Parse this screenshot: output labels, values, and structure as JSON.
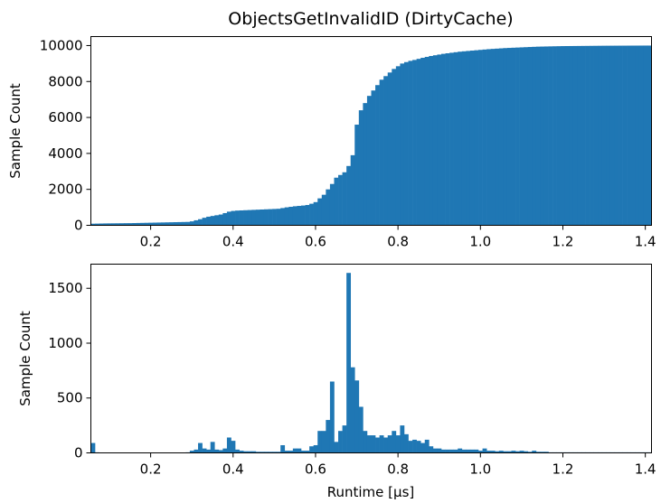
{
  "chart_data": [
    {
      "type": "bar",
      "subtype": "cumulative-histogram",
      "title": "ObjectsGetInvalidID (DirtyCache)",
      "xlabel": "",
      "ylabel": "Sample Count",
      "xlim": [
        0.055,
        1.415
      ],
      "ylim": [
        0,
        10500
      ],
      "xticks": [
        0.2,
        0.4,
        0.6,
        0.8,
        1.0,
        1.2,
        1.4
      ],
      "xtick_labels": [
        "0.2",
        "0.4",
        "0.6",
        "0.8",
        "1.0",
        "1.2",
        "1.4"
      ],
      "yticks": [
        0,
        2000,
        4000,
        6000,
        8000,
        10000
      ],
      "ytick_labels": [
        "0",
        "2000",
        "4000",
        "6000",
        "8000",
        "10000"
      ],
      "color": "#1f77b4",
      "bin_width": 0.01,
      "x": [
        0.06,
        0.07,
        0.08,
        0.09,
        0.1,
        0.11,
        0.12,
        0.13,
        0.14,
        0.15,
        0.16,
        0.17,
        0.18,
        0.19,
        0.2,
        0.21,
        0.22,
        0.23,
        0.24,
        0.25,
        0.26,
        0.27,
        0.28,
        0.29,
        0.3,
        0.31,
        0.32,
        0.33,
        0.34,
        0.35,
        0.36,
        0.37,
        0.38,
        0.39,
        0.4,
        0.41,
        0.42,
        0.43,
        0.44,
        0.45,
        0.46,
        0.47,
        0.48,
        0.49,
        0.5,
        0.51,
        0.52,
        0.53,
        0.54,
        0.55,
        0.56,
        0.57,
        0.58,
        0.59,
        0.6,
        0.61,
        0.62,
        0.63,
        0.64,
        0.65,
        0.66,
        0.67,
        0.68,
        0.69,
        0.7,
        0.71,
        0.72,
        0.73,
        0.74,
        0.75,
        0.76,
        0.77,
        0.78,
        0.79,
        0.8,
        0.81,
        0.82,
        0.83,
        0.84,
        0.85,
        0.86,
        0.87,
        0.88,
        0.89,
        0.9,
        0.91,
        0.92,
        0.93,
        0.94,
        0.95,
        0.96,
        0.97,
        0.98,
        0.99,
        1.0,
        1.01,
        1.02,
        1.03,
        1.04,
        1.05,
        1.06,
        1.07,
        1.08,
        1.09,
        1.1,
        1.11,
        1.12,
        1.13,
        1.14,
        1.15,
        1.16,
        1.17,
        1.18,
        1.19,
        1.2,
        1.21,
        1.22,
        1.23,
        1.24,
        1.25,
        1.26,
        1.27,
        1.28,
        1.29,
        1.3,
        1.31,
        1.32,
        1.33,
        1.34,
        1.35,
        1.36,
        1.37,
        1.38,
        1.39,
        1.4,
        1.41
      ],
      "values": [
        90,
        95,
        100,
        105,
        108,
        110,
        112,
        115,
        118,
        120,
        125,
        130,
        135,
        140,
        145,
        150,
        155,
        160,
        165,
        170,
        175,
        180,
        185,
        190,
        220,
        280,
        340,
        420,
        480,
        520,
        560,
        600,
        680,
        760,
        800,
        820,
        830,
        840,
        850,
        860,
        870,
        880,
        890,
        900,
        910,
        920,
        960,
        1000,
        1030,
        1060,
        1080,
        1100,
        1130,
        1200,
        1290,
        1500,
        1700,
        2000,
        2300,
        2650,
        2800,
        2950,
        3300,
        3900,
        5600,
        6400,
        6800,
        7200,
        7500,
        7800,
        8100,
        8300,
        8500,
        8700,
        8850,
        9000,
        9080,
        9150,
        9200,
        9260,
        9320,
        9370,
        9420,
        9460,
        9500,
        9540,
        9570,
        9600,
        9630,
        9660,
        9680,
        9700,
        9720,
        9740,
        9760,
        9780,
        9800,
        9815,
        9830,
        9845,
        9860,
        9870,
        9880,
        9890,
        9900,
        9910,
        9920,
        9930,
        9940,
        9945,
        9950,
        9955,
        9960,
        9965,
        9970,
        9972,
        9974,
        9976,
        9978,
        9980,
        9982,
        9984,
        9986,
        9988,
        9990,
        9991,
        9992,
        9993,
        9994,
        9995,
        9996,
        9997,
        9998,
        9999,
        10000,
        10000
      ]
    },
    {
      "type": "bar",
      "subtype": "histogram",
      "title": "",
      "xlabel": "Runtime [µs]",
      "ylabel": "Sample Count",
      "xlim": [
        0.055,
        1.415
      ],
      "ylim": [
        0,
        1720
      ],
      "xticks": [
        0.2,
        0.4,
        0.6,
        0.8,
        1.0,
        1.2,
        1.4
      ],
      "xtick_labels": [
        "0.2",
        "0.4",
        "0.6",
        "0.8",
        "1.0",
        "1.2",
        "1.4"
      ],
      "yticks": [
        0,
        500,
        1000,
        1500
      ],
      "ytick_labels": [
        "0",
        "500",
        "1000",
        "1500"
      ],
      "color": "#1f77b4",
      "bin_width": 0.01,
      "x": [
        0.06,
        0.07,
        0.08,
        0.09,
        0.1,
        0.11,
        0.12,
        0.13,
        0.14,
        0.15,
        0.16,
        0.17,
        0.18,
        0.19,
        0.2,
        0.21,
        0.22,
        0.23,
        0.24,
        0.25,
        0.26,
        0.27,
        0.28,
        0.29,
        0.3,
        0.31,
        0.32,
        0.33,
        0.34,
        0.35,
        0.36,
        0.37,
        0.38,
        0.39,
        0.4,
        0.41,
        0.42,
        0.43,
        0.44,
        0.45,
        0.46,
        0.47,
        0.48,
        0.49,
        0.5,
        0.51,
        0.52,
        0.53,
        0.54,
        0.55,
        0.56,
        0.57,
        0.58,
        0.59,
        0.6,
        0.61,
        0.62,
        0.63,
        0.64,
        0.65,
        0.66,
        0.67,
        0.68,
        0.69,
        0.7,
        0.71,
        0.72,
        0.73,
        0.74,
        0.75,
        0.76,
        0.77,
        0.78,
        0.79,
        0.8,
        0.81,
        0.82,
        0.83,
        0.84,
        0.85,
        0.86,
        0.87,
        0.88,
        0.89,
        0.9,
        0.91,
        0.92,
        0.93,
        0.94,
        0.95,
        0.96,
        0.97,
        0.98,
        0.99,
        1.0,
        1.01,
        1.02,
        1.03,
        1.04,
        1.05,
        1.06,
        1.07,
        1.08,
        1.09,
        1.1,
        1.11,
        1.12,
        1.13,
        1.14,
        1.15,
        1.16,
        1.17,
        1.18,
        1.19,
        1.2,
        1.21,
        1.22,
        1.23,
        1.24,
        1.25,
        1.26,
        1.27,
        1.28,
        1.29,
        1.3,
        1.31,
        1.32,
        1.33,
        1.34,
        1.35,
        1.36,
        1.37,
        1.38,
        1.39,
        1.4,
        1.41
      ],
      "values": [
        90,
        5,
        4,
        4,
        3,
        3,
        3,
        3,
        3,
        3,
        3,
        4,
        4,
        4,
        4,
        4,
        4,
        4,
        4,
        4,
        4,
        4,
        4,
        5,
        20,
        30,
        90,
        40,
        30,
        100,
        30,
        25,
        40,
        140,
        110,
        30,
        20,
        15,
        15,
        15,
        10,
        10,
        10,
        10,
        10,
        10,
        70,
        20,
        20,
        40,
        40,
        20,
        20,
        60,
        70,
        200,
        200,
        300,
        650,
        100,
        200,
        250,
        1640,
        780,
        660,
        420,
        200,
        160,
        160,
        140,
        160,
        140,
        160,
        200,
        160,
        250,
        170,
        110,
        120,
        110,
        90,
        120,
        60,
        40,
        40,
        30,
        30,
        30,
        30,
        40,
        30,
        30,
        30,
        30,
        20,
        40,
        20,
        20,
        15,
        20,
        15,
        15,
        20,
        15,
        20,
        15,
        10,
        20,
        10,
        10,
        10,
        5,
        5,
        5,
        5,
        5,
        5,
        5,
        5,
        5,
        5,
        5,
        5,
        5,
        5,
        5,
        5,
        5,
        5,
        5,
        5,
        5,
        5,
        5,
        5,
        5
      ]
    }
  ]
}
